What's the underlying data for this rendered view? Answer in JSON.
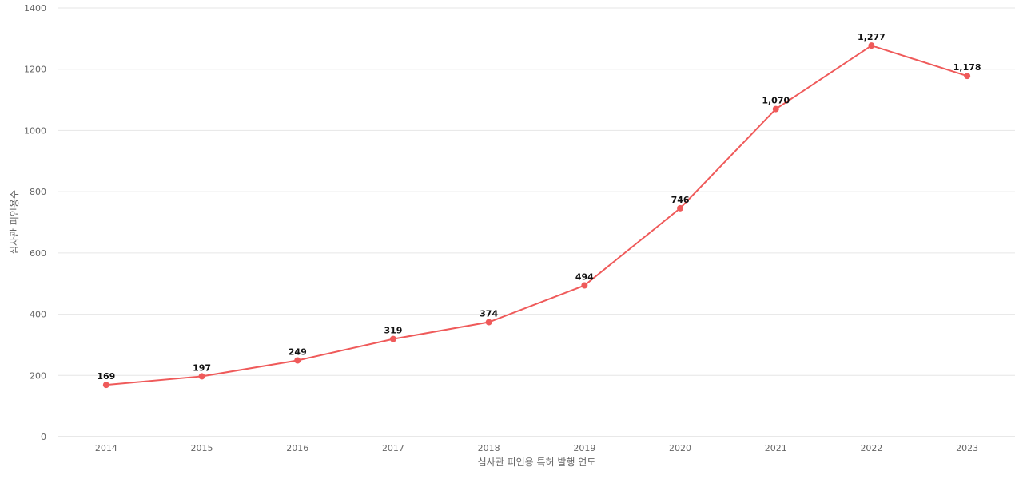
{
  "chart_data": {
    "type": "line",
    "categories": [
      "2014",
      "2015",
      "2016",
      "2017",
      "2018",
      "2019",
      "2020",
      "2021",
      "2022",
      "2023"
    ],
    "series": [
      {
        "values": [
          169,
          197,
          249,
          319,
          374,
          494,
          746,
          1070,
          1277,
          1178
        ],
        "data_labels": [
          "169",
          "197",
          "249",
          "319",
          "374",
          "494",
          "746",
          "1,070",
          "1,277",
          "1,178"
        ],
        "color": "#ef5a5a"
      }
    ],
    "xlabel": "심사관 피인용 특허 발행 연도",
    "ylabel": "심사관 피인용수",
    "ylim": [
      0,
      1400
    ],
    "y_ticks": [
      0,
      200,
      400,
      600,
      800,
      1000,
      1200,
      1400
    ],
    "grid": true,
    "legend": "none"
  }
}
